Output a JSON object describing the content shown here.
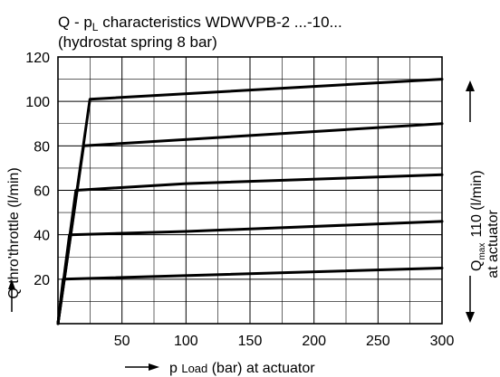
{
  "chart_data": {
    "type": "line",
    "title_line1_a": "Q - p",
    "title_line1_sub": "L",
    "title_line1_b": " characteristics WDWVPB-2 ...-10...",
    "title_line2": "(hydrostat spring 8 bar)",
    "ylabel": "Q thro'throttle (l/min)",
    "xlabel_a": "p ",
    "xlabel_small": "Load",
    "xlabel_b": " (bar) at actuator",
    "right_label_q": "Q",
    "right_label_sub": "max",
    "right_label_value": "110 (l/min)",
    "right_label_line2": "at actuator",
    "xlim": [
      0,
      300
    ],
    "ylim": [
      0,
      120
    ],
    "x_ticks": [
      50,
      100,
      150,
      200,
      250,
      300
    ],
    "y_ticks": [
      20,
      40,
      60,
      80,
      100,
      120
    ],
    "grid": true,
    "series": [
      {
        "x": [
          0,
          4,
          300
        ],
        "y": [
          0,
          20,
          25
        ]
      },
      {
        "x": [
          0,
          9,
          100,
          300
        ],
        "y": [
          0,
          40,
          41.5,
          46
        ]
      },
      {
        "x": [
          0,
          14,
          100,
          300
        ],
        "y": [
          0,
          60,
          63,
          67
        ]
      },
      {
        "x": [
          0,
          20,
          300
        ],
        "y": [
          0,
          80,
          90
        ]
      },
      {
        "x": [
          0,
          25,
          300
        ],
        "y": [
          0,
          101,
          110
        ]
      }
    ]
  }
}
